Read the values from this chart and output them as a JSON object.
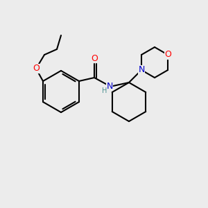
{
  "background_color": "#ececec",
  "bond_color": "#000000",
  "bond_width": 1.5,
  "atom_colors": {
    "O": "#ff0000",
    "N": "#0000cc",
    "H": "#4a9090"
  },
  "figsize": [
    3.0,
    3.0
  ],
  "dpi": 100
}
